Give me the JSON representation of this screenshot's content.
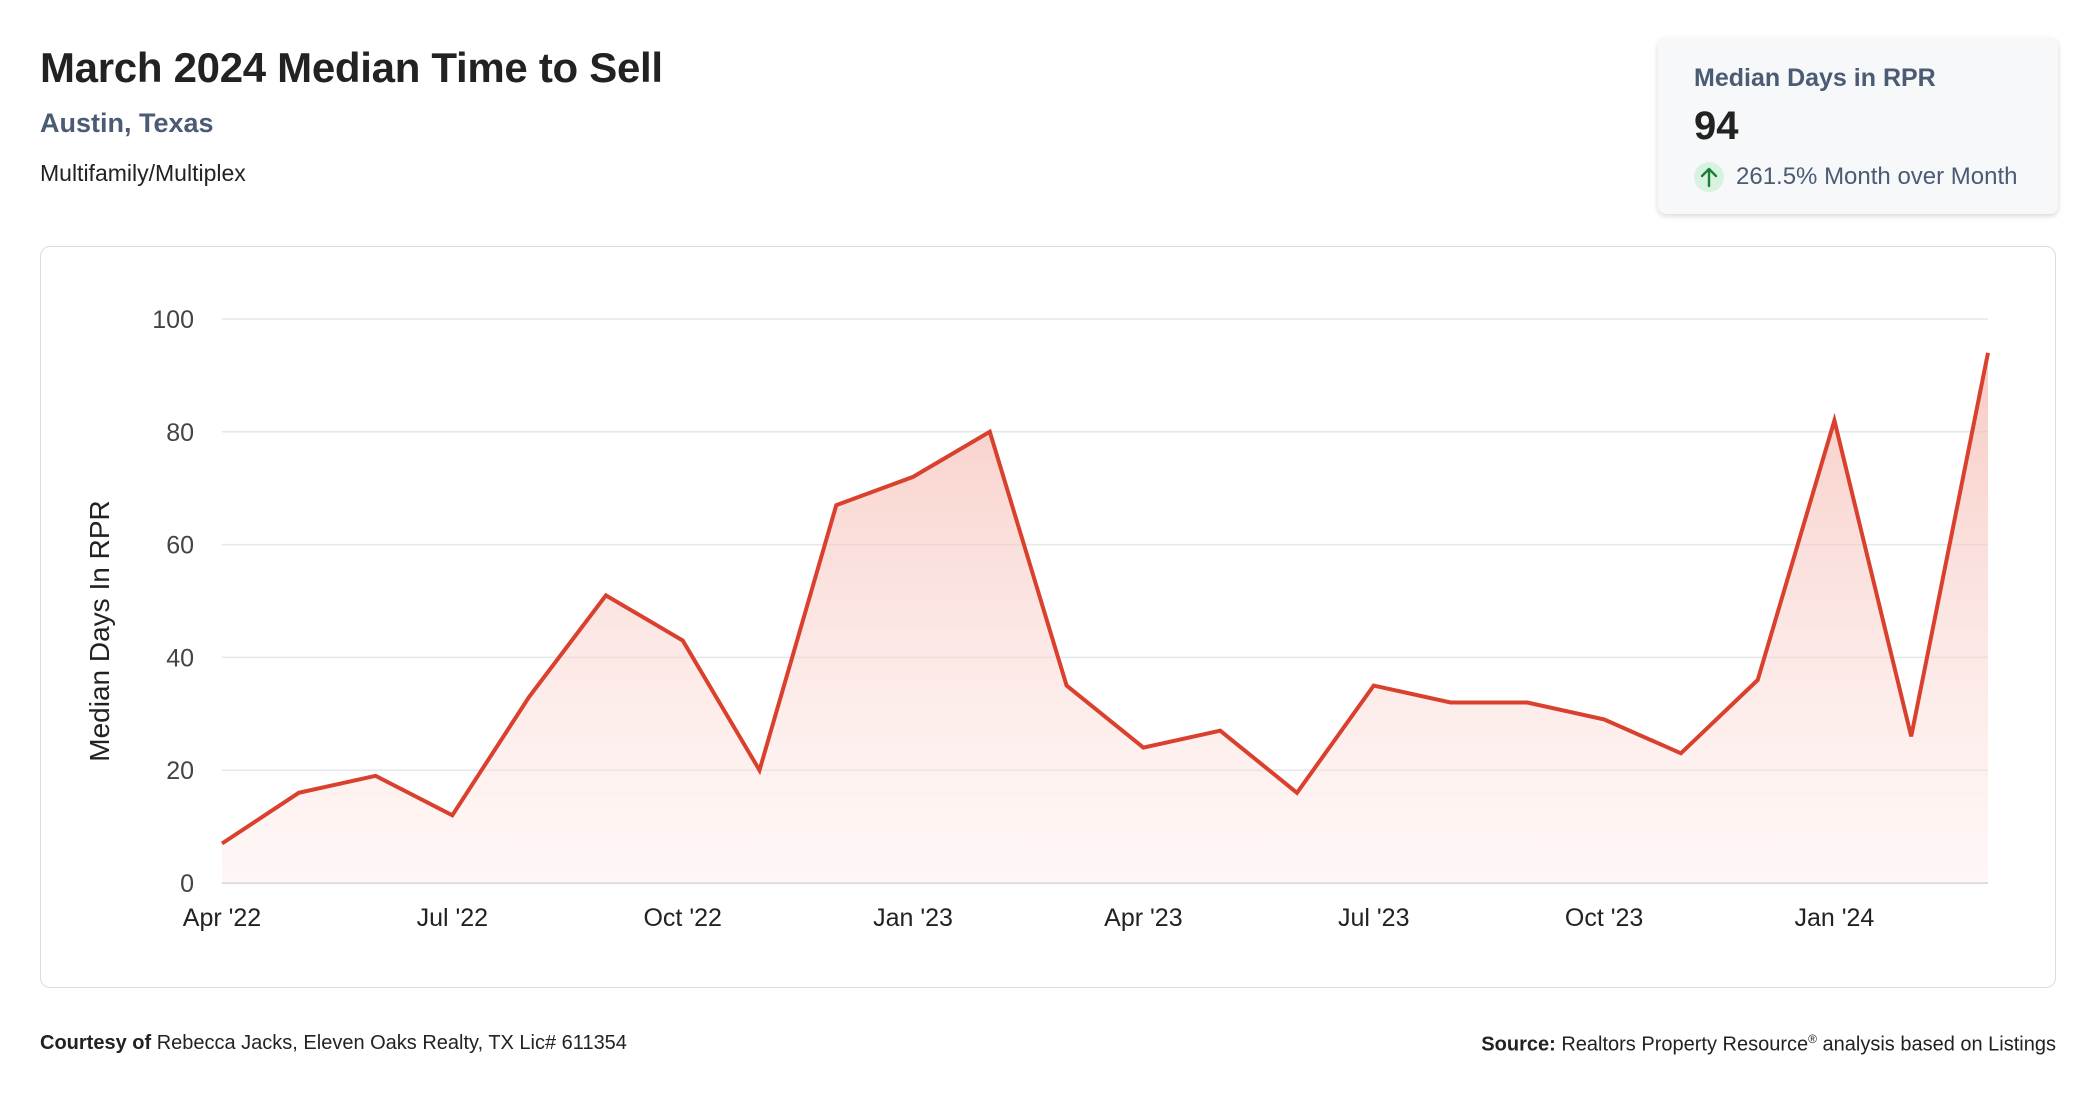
{
  "header": {
    "title": "March 2024 Median Time to Sell",
    "location": "Austin, Texas",
    "property_type": "Multifamily/Multiplex"
  },
  "stat_card": {
    "label": "Median Days in RPR",
    "value": "94",
    "change": "261.5% Month over Month",
    "change_icon": "arrow-up-icon",
    "change_color": "#1a7f37"
  },
  "colors": {
    "line": "#d9412e",
    "area_top": "#f6c9c2",
    "grid": "#e3e6ea",
    "axis_text": "#444444"
  },
  "chart_data": {
    "type": "area",
    "ylabel": "Median Days In RPR",
    "ylim": [
      0,
      100
    ],
    "yticks": [
      0,
      20,
      40,
      60,
      80,
      100
    ],
    "xticks": [
      "Apr '22",
      "Jul '22",
      "Oct '22",
      "Jan '23",
      "Apr '23",
      "Jul '23",
      "Oct '23",
      "Jan '24"
    ],
    "grid": true,
    "x": [
      "Apr '22",
      "May '22",
      "Jun '22",
      "Jul '22",
      "Aug '22",
      "Sep '22",
      "Oct '22",
      "Nov '22",
      "Dec '22",
      "Jan '23",
      "Feb '23",
      "Mar '23",
      "Apr '23",
      "May '23",
      "Jun '23",
      "Jul '23",
      "Aug '23",
      "Sep '23",
      "Oct '23",
      "Nov '23",
      "Dec '23",
      "Jan '24",
      "Feb '24",
      "Mar '24"
    ],
    "series": [
      {
        "values": [
          7,
          16,
          19,
          12,
          33,
          51,
          43,
          20,
          67,
          72,
          80,
          35,
          24,
          27,
          16,
          35,
          32,
          32,
          29,
          23,
          36,
          82,
          26,
          94
        ]
      }
    ]
  },
  "footer": {
    "courtesy_label": "Courtesy of",
    "courtesy_text": "Rebecca Jacks, Eleven Oaks Realty, TX Lic# 611354",
    "source_label": "Source:",
    "source_text_1": "Realtors Property Resource",
    "source_sup": "®",
    "source_text_2": " analysis based on Listings"
  }
}
